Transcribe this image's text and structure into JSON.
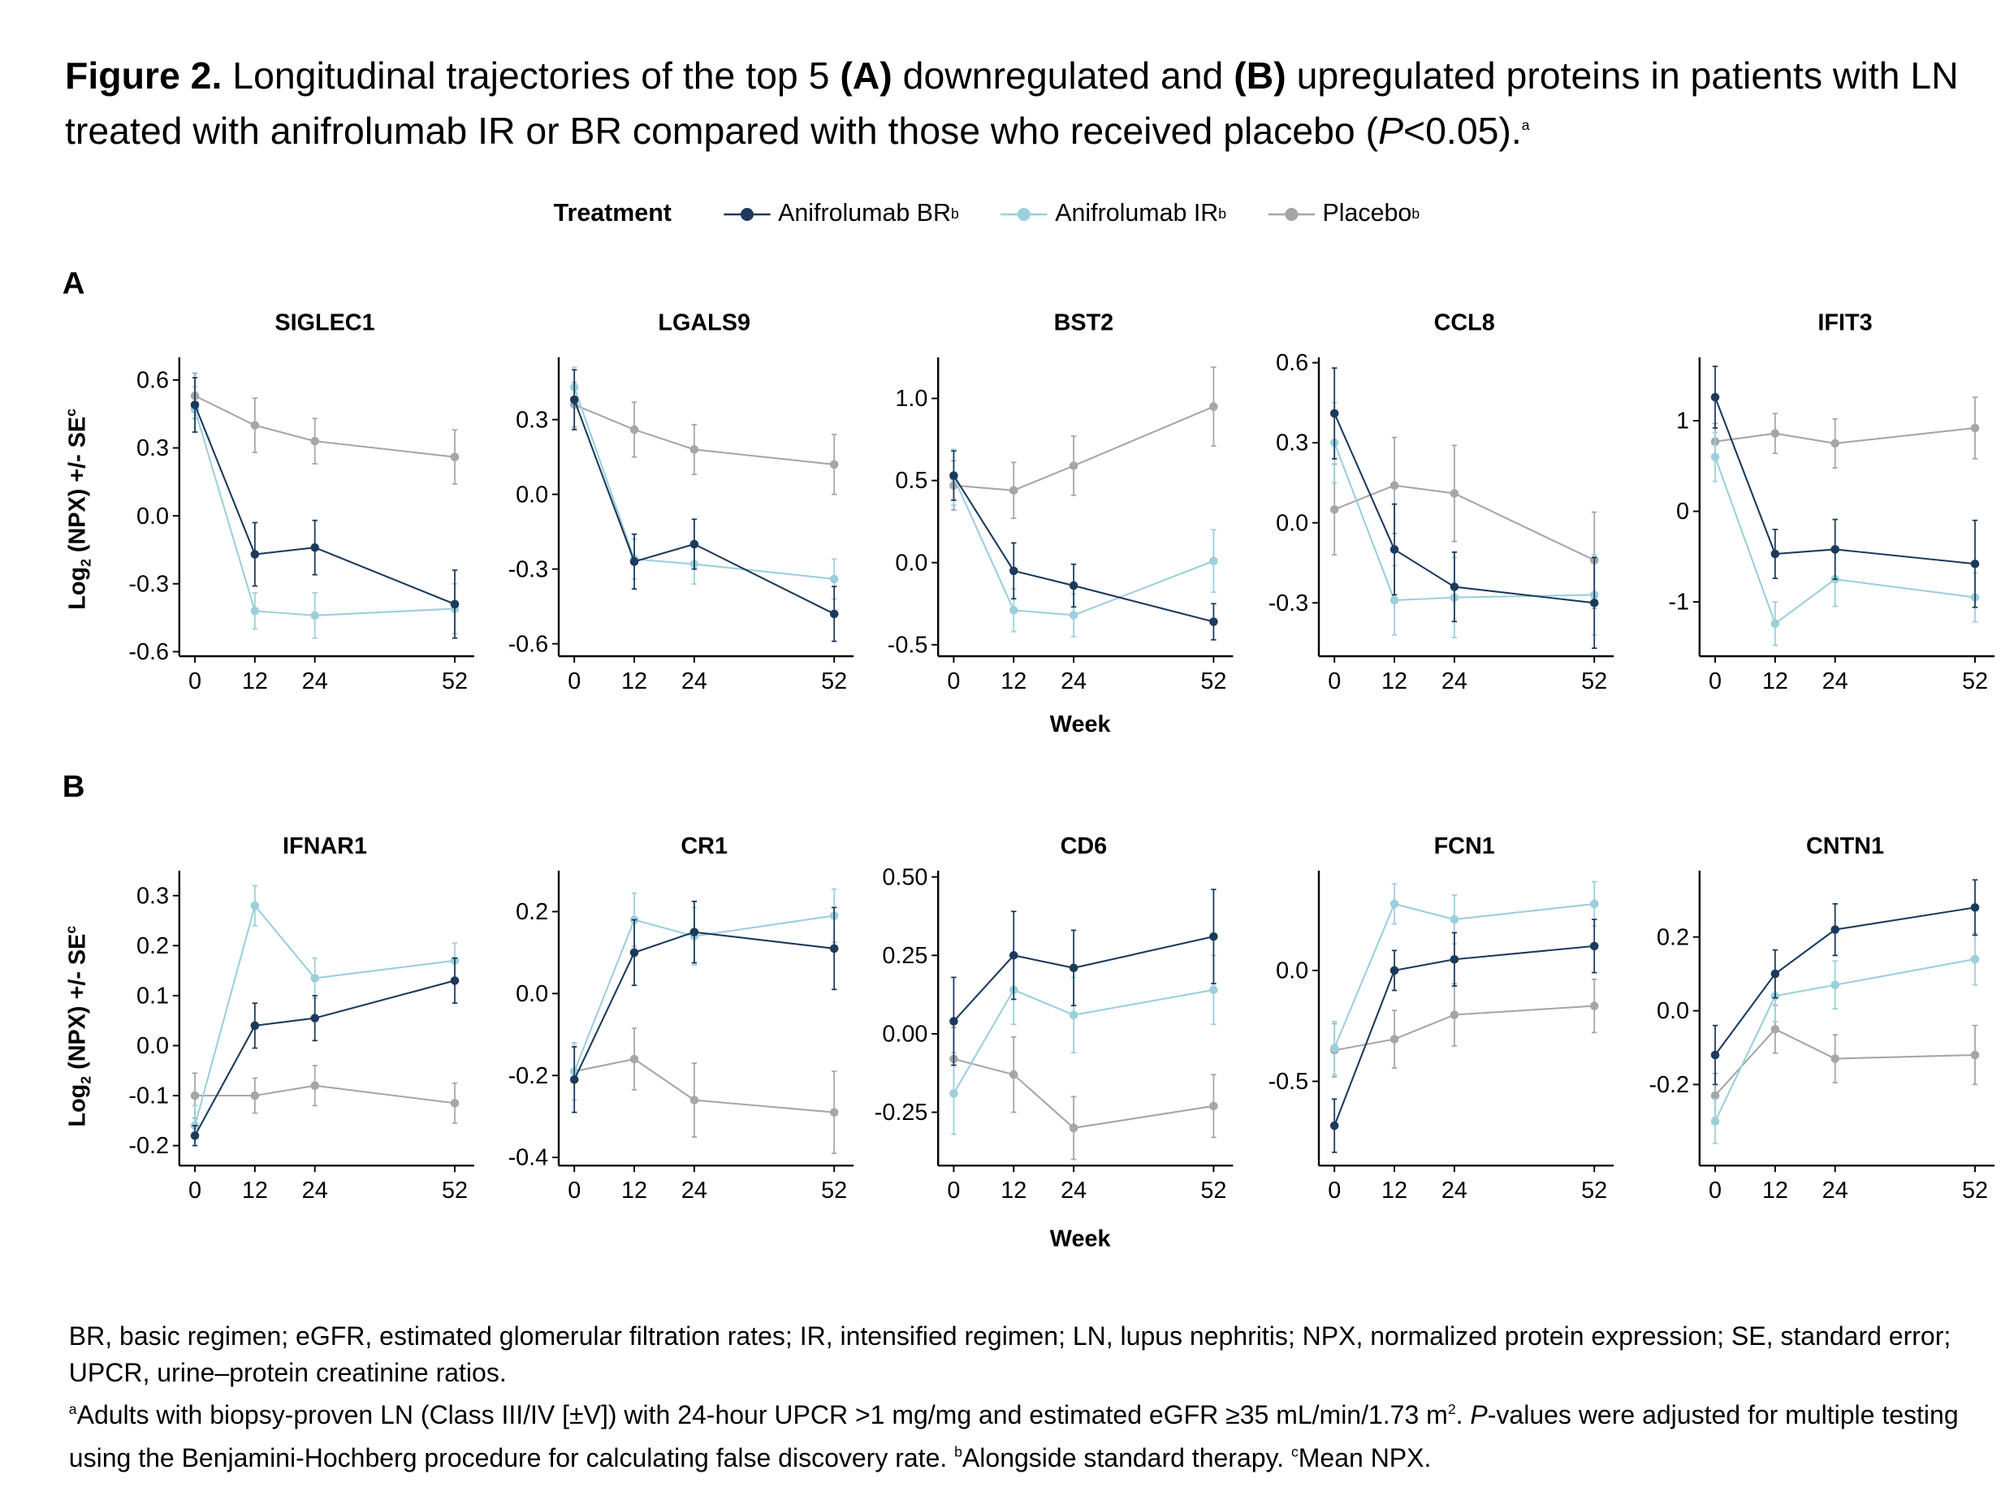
{
  "title": {
    "prefix": "Figure 2.",
    "t1": " Longitudinal trajectories of the top 5 ",
    "a": "(A)",
    "t2": " downregulated and ",
    "b": "(B)",
    "t3": " upregulated proteins in patients with LN treated with anifrolumab IR or BR compared with those who received placebo (",
    "p": "P",
    "t4": "<0.05).",
    "sup": "a"
  },
  "legend": {
    "title": "Treatment",
    "items": [
      {
        "label": "Anifrolumab BR",
        "sup": "b",
        "color": "#1b3a5c"
      },
      {
        "label": "Anifrolumab IR",
        "sup": "b",
        "color": "#9ccfdc"
      },
      {
        "label": "Placebo",
        "sup": "b",
        "color": "#a6a6a6"
      }
    ]
  },
  "panel_labels": {
    "a": "A",
    "b": "B"
  },
  "axis": {
    "ylabel_pre": "Log",
    "ylabel_sub": "2",
    "ylabel_post": " (NPX) +/- SE",
    "ylabel_sup": "c",
    "xlabel": "Week"
  },
  "chart_data": [
    {
      "type": "line",
      "title": "SIGLEC1",
      "x": [
        0,
        12,
        24,
        52
      ],
      "ylim": [
        -0.62,
        0.7
      ],
      "yticks": [
        -0.6,
        -0.3,
        0.0,
        0.3,
        0.6
      ],
      "ytick_labels": [
        "-0.6",
        "-0.3",
        "0.0",
        "0.3",
        "0.6"
      ],
      "series": [
        {
          "name": "Anifrolumab BR",
          "values": [
            0.49,
            -0.17,
            -0.14,
            -0.39
          ],
          "se": [
            0.12,
            0.14,
            0.12,
            0.15
          ]
        },
        {
          "name": "Anifrolumab IR",
          "values": [
            0.47,
            -0.42,
            -0.44,
            -0.41
          ],
          "se": [
            0.1,
            0.08,
            0.1,
            0.11
          ]
        },
        {
          "name": "Placebo",
          "values": [
            0.53,
            0.4,
            0.33,
            0.26
          ],
          "se": [
            0.1,
            0.12,
            0.1,
            0.12
          ]
        }
      ]
    },
    {
      "type": "line",
      "title": "LGALS9",
      "x": [
        0,
        12,
        24,
        52
      ],
      "ylim": [
        -0.65,
        0.55
      ],
      "yticks": [
        -0.6,
        -0.3,
        0.0,
        0.3
      ],
      "ytick_labels": [
        "-0.6",
        "-0.3",
        "0.0",
        "0.3"
      ],
      "series": [
        {
          "name": "Anifrolumab BR",
          "values": [
            0.38,
            -0.27,
            -0.2,
            -0.48
          ],
          "se": [
            0.12,
            0.11,
            0.1,
            0.11
          ]
        },
        {
          "name": "Anifrolumab IR",
          "values": [
            0.43,
            -0.26,
            -0.28,
            -0.34
          ],
          "se": [
            0.08,
            0.08,
            0.08,
            0.08
          ]
        },
        {
          "name": "Placebo",
          "values": [
            0.36,
            0.26,
            0.18,
            0.12
          ],
          "se": [
            0.09,
            0.11,
            0.1,
            0.12
          ]
        }
      ]
    },
    {
      "type": "line",
      "title": "BST2",
      "x": [
        0,
        12,
        24,
        52
      ],
      "ylim": [
        -0.57,
        1.25
      ],
      "yticks": [
        -0.5,
        0.0,
        0.5,
        1.0
      ],
      "ytick_labels": [
        "-0.5",
        "0.0",
        "0.5",
        "1.0"
      ],
      "series": [
        {
          "name": "Anifrolumab BR",
          "values": [
            0.53,
            -0.05,
            -0.14,
            -0.36
          ],
          "se": [
            0.15,
            0.17,
            0.13,
            0.11
          ]
        },
        {
          "name": "Anifrolumab IR",
          "values": [
            0.52,
            -0.29,
            -0.32,
            0.01
          ],
          "se": [
            0.17,
            0.13,
            0.13,
            0.19
          ]
        },
        {
          "name": "Placebo",
          "values": [
            0.47,
            0.44,
            0.59,
            0.95
          ],
          "se": [
            0.15,
            0.17,
            0.18,
            0.24
          ]
        }
      ]
    },
    {
      "type": "line",
      "title": "CCL8",
      "x": [
        0,
        12,
        24,
        52
      ],
      "ylim": [
        -0.5,
        0.62
      ],
      "yticks": [
        -0.3,
        0.0,
        0.3,
        0.6
      ],
      "ytick_labels": [
        "-0.3",
        "0.0",
        "0.3",
        "0.6"
      ],
      "series": [
        {
          "name": "Anifrolumab BR",
          "values": [
            0.41,
            -0.1,
            -0.24,
            -0.3
          ],
          "se": [
            0.17,
            0.17,
            0.13,
            0.17
          ]
        },
        {
          "name": "Anifrolumab IR",
          "values": [
            0.3,
            -0.29,
            -0.28,
            -0.27
          ],
          "se": [
            0.15,
            0.13,
            0.15,
            0.15
          ]
        },
        {
          "name": "Placebo",
          "values": [
            0.05,
            0.14,
            0.11,
            -0.14
          ],
          "se": [
            0.17,
            0.18,
            0.18,
            0.18
          ]
        }
      ]
    },
    {
      "type": "line",
      "title": "IFIT3",
      "x": [
        0,
        12,
        24,
        52
      ],
      "ylim": [
        -1.6,
        1.7
      ],
      "yticks": [
        -1,
        0,
        1
      ],
      "ytick_labels": [
        "-1",
        "0",
        "1"
      ],
      "series": [
        {
          "name": "Anifrolumab BR",
          "values": [
            1.26,
            -0.47,
            -0.42,
            -0.58
          ],
          "se": [
            0.34,
            0.27,
            0.33,
            0.48
          ]
        },
        {
          "name": "Anifrolumab IR",
          "values": [
            0.6,
            -1.24,
            -0.75,
            -0.95
          ],
          "se": [
            0.27,
            0.24,
            0.3,
            0.27
          ]
        },
        {
          "name": "Placebo",
          "values": [
            0.77,
            0.86,
            0.75,
            0.92
          ],
          "se": [
            0.2,
            0.22,
            0.27,
            0.34
          ]
        }
      ]
    },
    {
      "type": "line",
      "title": "IFNAR1",
      "x": [
        0,
        12,
        24,
        52
      ],
      "ylim": [
        -0.24,
        0.35
      ],
      "yticks": [
        -0.2,
        -0.1,
        0.0,
        0.1,
        0.2,
        0.3
      ],
      "ytick_labels": [
        "-0.2",
        "-0.1",
        "0.0",
        "0.1",
        "0.2",
        "0.3"
      ],
      "series": [
        {
          "name": "Anifrolumab BR",
          "values": [
            -0.18,
            0.04,
            0.055,
            0.13
          ],
          "se": [
            0.02,
            0.045,
            0.045,
            0.045
          ]
        },
        {
          "name": "Anifrolumab IR",
          "values": [
            -0.16,
            0.28,
            0.135,
            0.17
          ],
          "se": [
            0.04,
            0.04,
            0.04,
            0.035
          ]
        },
        {
          "name": "Placebo",
          "values": [
            -0.1,
            -0.1,
            -0.08,
            -0.115
          ],
          "se": [
            0.045,
            0.035,
            0.04,
            0.04
          ]
        }
      ]
    },
    {
      "type": "line",
      "title": "CR1",
      "x": [
        0,
        12,
        24,
        52
      ],
      "ylim": [
        -0.42,
        0.3
      ],
      "yticks": [
        -0.4,
        -0.2,
        0.0,
        0.2
      ],
      "ytick_labels": [
        "-0.4",
        "-0.2",
        "0.0",
        "0.2"
      ],
      "series": [
        {
          "name": "Anifrolumab BR",
          "values": [
            -0.21,
            0.1,
            0.15,
            0.11
          ],
          "se": [
            0.08,
            0.08,
            0.075,
            0.1
          ]
        },
        {
          "name": "Anifrolumab IR",
          "values": [
            -0.19,
            0.18,
            0.14,
            0.19
          ],
          "se": [
            0.07,
            0.065,
            0.07,
            0.065
          ]
        },
        {
          "name": "Placebo",
          "values": [
            -0.19,
            -0.16,
            -0.26,
            -0.29
          ],
          "se": [
            0.07,
            0.075,
            0.09,
            0.1
          ]
        }
      ]
    },
    {
      "type": "line",
      "title": "CD6",
      "x": [
        0,
        12,
        24,
        52
      ],
      "ylim": [
        -0.42,
        0.52
      ],
      "yticks": [
        -0.25,
        0.0,
        0.25,
        0.5
      ],
      "ytick_labels": [
        "-0.25",
        "0.00",
        "0.25",
        "0.50"
      ],
      "series": [
        {
          "name": "Anifrolumab BR",
          "values": [
            0.04,
            0.25,
            0.21,
            0.31
          ],
          "se": [
            0.14,
            0.14,
            0.12,
            0.15
          ]
        },
        {
          "name": "Anifrolumab IR",
          "values": [
            -0.19,
            0.14,
            0.06,
            0.14
          ],
          "se": [
            0.13,
            0.11,
            0.12,
            0.11
          ]
        },
        {
          "name": "Placebo",
          "values": [
            -0.08,
            -0.13,
            -0.3,
            -0.23
          ],
          "se": [
            0.1,
            0.12,
            0.1,
            0.1
          ]
        }
      ]
    },
    {
      "type": "line",
      "title": "FCN1",
      "x": [
        0,
        12,
        24,
        52
      ],
      "ylim": [
        -0.88,
        0.45
      ],
      "yticks": [
        -0.5,
        0.0
      ],
      "ytick_labels": [
        "-0.5",
        "0.0"
      ],
      "series": [
        {
          "name": "Anifrolumab BR",
          "values": [
            -0.7,
            0.0,
            0.05,
            0.11
          ],
          "se": [
            0.12,
            0.09,
            0.12,
            0.12
          ]
        },
        {
          "name": "Anifrolumab IR",
          "values": [
            -0.35,
            0.3,
            0.23,
            0.3
          ],
          "se": [
            0.12,
            0.09,
            0.11,
            0.1
          ]
        },
        {
          "name": "Placebo",
          "values": [
            -0.36,
            -0.31,
            -0.2,
            -0.16
          ],
          "se": [
            0.12,
            0.13,
            0.14,
            0.12
          ]
        }
      ]
    },
    {
      "type": "line",
      "title": "CNTN1",
      "x": [
        0,
        12,
        24,
        52
      ],
      "ylim": [
        -0.42,
        0.38
      ],
      "yticks": [
        -0.2,
        0.0,
        0.2
      ],
      "ytick_labels": [
        "-0.2",
        "0.0",
        "0.2"
      ],
      "series": [
        {
          "name": "Anifrolumab BR",
          "values": [
            -0.12,
            0.1,
            0.22,
            0.28
          ],
          "se": [
            0.08,
            0.065,
            0.07,
            0.075
          ]
        },
        {
          "name": "Anifrolumab IR",
          "values": [
            -0.3,
            0.04,
            0.07,
            0.14
          ],
          "se": [
            0.06,
            0.07,
            0.065,
            0.07
          ]
        },
        {
          "name": "Placebo",
          "values": [
            -0.23,
            -0.05,
            -0.13,
            -0.12
          ],
          "se": [
            0.06,
            0.065,
            0.065,
            0.08
          ]
        }
      ]
    }
  ],
  "xtick_labels": [
    "0",
    "12",
    "24",
    "52"
  ],
  "footnote": {
    "line1": "BR, basic regimen; eGFR, estimated glomerular filtration rates; IR, intensified regimen; LN, lupus nephritis; NPX, normalized protein expression; SE, standard error; UPCR, urine–protein creatinine ratios.",
    "sup_a": "a",
    "a_text1": "Adults with biopsy-proven LN (Class III/IV [±V]) with 24-hour UPCR >1 mg/mg and estimated eGFR ≥35 mL/min/1.73 m",
    "sup_2": "2",
    "a_text2": ". ",
    "p": "P",
    "a_text3": "-values were adjusted for multiple testing using the Benjamini-Hochberg procedure for calculating false discovery rate. ",
    "sup_b": "b",
    "b_text": "Alongside standard therapy. ",
    "sup_c": "c",
    "c_text": "Mean NPX."
  }
}
